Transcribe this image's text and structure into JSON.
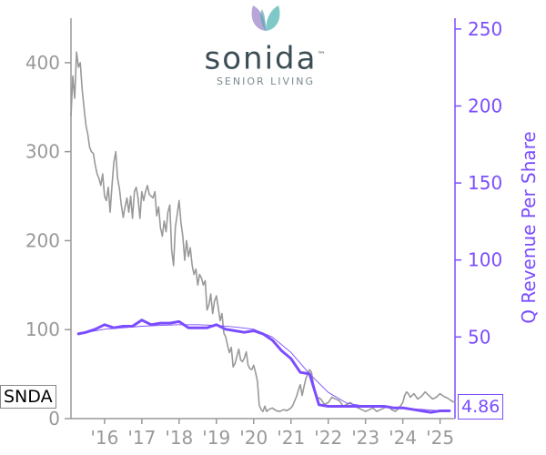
{
  "logo": {
    "wordmark": "sonida",
    "tagline": "SENIOR LIVING",
    "trademark": "™"
  },
  "ticker": "SNDA",
  "last_value": "4.86",
  "colors": {
    "price": "#999999",
    "revenue": "#7b4dff",
    "axis_left": "#999999",
    "axis_right": "#7b4dff"
  },
  "chart_data": {
    "type": "line",
    "title": "",
    "xlabel": "",
    "x_tick_labels": [
      "'16",
      "'17",
      "'18",
      "'19",
      "'20",
      "'21",
      "'22",
      "'23",
      "'24",
      "'25"
    ],
    "x_range": [
      2015.1,
      2025.4
    ],
    "y_left": {
      "ylim": [
        0,
        450
      ],
      "ticks": [
        0,
        100,
        200,
        300,
        400
      ],
      "label": ""
    },
    "y_right": {
      "ylim": [
        -3,
        257
      ],
      "ticks": [
        50,
        100,
        150,
        200,
        250
      ],
      "label": "Q Revenue Per Share"
    },
    "grid": false,
    "legend": "none",
    "series": [
      {
        "axis": "left",
        "style": "thin",
        "x": [
          2015.1,
          2015.15,
          2015.2,
          2015.25,
          2015.3,
          2015.35,
          2015.4,
          2015.45,
          2015.5,
          2015.55,
          2015.6,
          2015.65,
          2015.7,
          2015.75,
          2015.8,
          2015.85,
          2015.9,
          2015.95,
          2016.0,
          2016.05,
          2016.1,
          2016.15,
          2016.2,
          2016.25,
          2016.3,
          2016.35,
          2016.4,
          2016.45,
          2016.5,
          2016.55,
          2016.6,
          2016.65,
          2016.7,
          2016.75,
          2016.8,
          2016.85,
          2016.9,
          2016.95,
          2017.0,
          2017.05,
          2017.1,
          2017.15,
          2017.2,
          2017.25,
          2017.3,
          2017.35,
          2017.4,
          2017.45,
          2017.5,
          2017.55,
          2017.6,
          2017.65,
          2017.7,
          2017.75,
          2017.8,
          2017.85,
          2017.9,
          2017.95,
          2018.0,
          2018.05,
          2018.1,
          2018.15,
          2018.2,
          2018.25,
          2018.3,
          2018.35,
          2018.4,
          2018.45,
          2018.5,
          2018.55,
          2018.6,
          2018.65,
          2018.7,
          2018.75,
          2018.8,
          2018.85,
          2018.9,
          2018.95,
          2019.0,
          2019.05,
          2019.1,
          2019.15,
          2019.2,
          2019.25,
          2019.3,
          2019.35,
          2019.4,
          2019.45,
          2019.5,
          2019.55,
          2019.6,
          2019.65,
          2019.7,
          2019.75,
          2019.8,
          2019.85,
          2019.9,
          2019.95,
          2020.0,
          2020.05,
          2020.1,
          2020.15,
          2020.2,
          2020.25,
          2020.3,
          2020.35,
          2020.4,
          2020.5,
          2020.6,
          2020.7,
          2020.8,
          2020.9,
          2021.0,
          2021.05,
          2021.1,
          2021.15,
          2021.2,
          2021.25,
          2021.3,
          2021.35,
          2021.4,
          2021.45,
          2021.5,
          2021.55,
          2021.6,
          2021.65,
          2021.7,
          2021.8,
          2021.9,
          2022.0,
          2022.1,
          2022.2,
          2022.3,
          2022.4,
          2022.5,
          2022.6,
          2022.7,
          2022.8,
          2022.9,
          2023.0,
          2023.1,
          2023.2,
          2023.3,
          2023.4,
          2023.5,
          2023.6,
          2023.7,
          2023.8,
          2023.9,
          2024.0,
          2024.05,
          2024.1,
          2024.15,
          2024.2,
          2024.3,
          2024.4,
          2024.5,
          2024.6,
          2024.7,
          2024.8,
          2024.9,
          2025.0,
          2025.1,
          2025.2,
          2025.3,
          2025.4
        ],
        "values": [
          340,
          385,
          360,
          412,
          395,
          400,
          370,
          350,
          330,
          320,
          305,
          300,
          298,
          285,
          275,
          270,
          262,
          275,
          250,
          245,
          260,
          232,
          262,
          288,
          300,
          270,
          258,
          240,
          226,
          238,
          248,
          232,
          250,
          225,
          255,
          260,
          248,
          225,
          255,
          245,
          255,
          262,
          252,
          250,
          248,
          255,
          228,
          238,
          215,
          205,
          222,
          210,
          232,
          240,
          190,
          172,
          215,
          230,
          245,
          220,
          205,
          178,
          200,
          182,
          192,
          172,
          162,
          168,
          150,
          162,
          158,
          150,
          155,
          122,
          128,
          140,
          118,
          132,
          138,
          125,
          110,
          118,
          96,
          92,
          82,
          74,
          80,
          58,
          62,
          70,
          78,
          66,
          64,
          68,
          75,
          60,
          56,
          55,
          60,
          52,
          42,
          15,
          10,
          8,
          14,
          8,
          10,
          12,
          9,
          8,
          10,
          9,
          12,
          15,
          20,
          25,
          32,
          38,
          26,
          36,
          45,
          50,
          55,
          52,
          40,
          30,
          24,
          22,
          16,
          18,
          24,
          22,
          20,
          14,
          16,
          18,
          14,
          12,
          10,
          8,
          10,
          12,
          8,
          10,
          12,
          14,
          10,
          8,
          12,
          18,
          26,
          30,
          28,
          24,
          28,
          22,
          25,
          30,
          26,
          22,
          24,
          28,
          25,
          23,
          20,
          18
        ]
      },
      {
        "axis": "right",
        "style": "thick",
        "x": [
          2015.3,
          2015.5,
          2015.75,
          2016.0,
          2016.25,
          2016.5,
          2016.75,
          2017.0,
          2017.25,
          2017.5,
          2017.75,
          2018.0,
          2018.25,
          2018.5,
          2018.75,
          2019.0,
          2019.25,
          2019.5,
          2019.75,
          2020.0,
          2020.25,
          2020.5,
          2020.75,
          2021.0,
          2021.25,
          2021.5,
          2021.75,
          2022.0,
          2022.25,
          2022.5,
          2022.75,
          2023.0,
          2023.25,
          2023.5,
          2023.75,
          2024.0,
          2024.25,
          2024.5,
          2024.75,
          2025.0,
          2025.25
        ],
        "values": [
          52,
          53,
          55,
          58,
          56,
          57,
          57,
          61,
          58,
          59,
          59,
          60,
          56,
          56,
          56,
          58,
          55,
          54,
          53,
          54,
          52,
          48,
          41,
          36,
          27,
          26,
          6,
          5,
          5,
          5,
          5,
          5,
          5,
          5,
          4,
          4,
          3,
          2,
          1,
          2,
          2
        ]
      },
      {
        "axis": "right",
        "style": "trend",
        "x": [
          2015.3,
          2016.0,
          2016.5,
          2017.0,
          2017.5,
          2018.0,
          2018.5,
          2019.0,
          2019.5,
          2020.0,
          2020.5,
          2021.0,
          2021.5,
          2022.0,
          2022.5,
          2023.0,
          2023.5,
          2024.0,
          2024.5,
          2025.0
        ],
        "values": [
          52,
          55,
          56,
          57,
          57.5,
          58,
          58,
          57.5,
          56.5,
          55,
          50,
          40,
          26,
          14,
          7,
          5,
          4.5,
          3.5,
          3,
          2
        ]
      }
    ]
  }
}
